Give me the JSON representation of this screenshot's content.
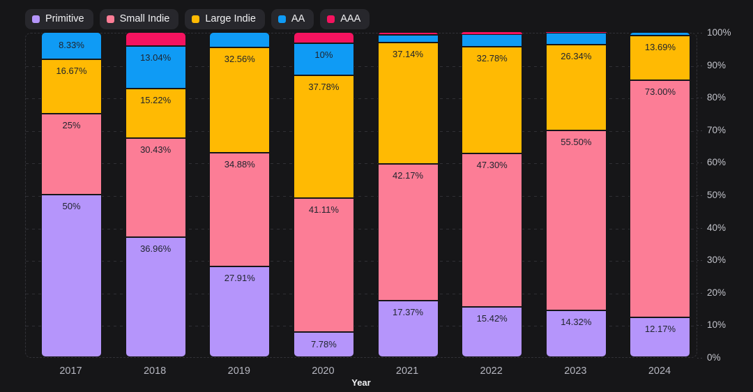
{
  "legend": {
    "items": [
      {
        "id": "primitive",
        "label": "Primitive",
        "color": "#b595fb"
      },
      {
        "id": "small-indie",
        "label": "Small Indie",
        "color": "#fc7d96"
      },
      {
        "id": "large-indie",
        "label": "Large Indie",
        "color": "#ffba03"
      },
      {
        "id": "aa",
        "label": "AA",
        "color": "#0f9bf5"
      },
      {
        "id": "aaa",
        "label": "AAA",
        "color": "#f5135f"
      }
    ]
  },
  "chart_data": {
    "type": "bar",
    "stacked": true,
    "normalized_percent": true,
    "title": "",
    "xlabel": "Year",
    "ylabel": "",
    "ylim": [
      0,
      100
    ],
    "grid": "dashed-horizontal",
    "legend_position": "top-left",
    "y_ticks": [
      "0%",
      "10%",
      "20%",
      "30%",
      "40%",
      "50%",
      "60%",
      "70%",
      "80%",
      "90%",
      "100%"
    ],
    "categories": [
      "2017",
      "2018",
      "2019",
      "2020",
      "2021",
      "2022",
      "2023",
      "2024"
    ],
    "series": [
      {
        "name": "Primitive",
        "color": "#b595fb",
        "values": [
          50,
          36.96,
          27.91,
          7.78,
          17.37,
          15.42,
          14.32,
          12.17
        ],
        "labels": [
          "50%",
          "36.96%",
          "27.91%",
          "7.78%",
          "17.37%",
          "15.42%",
          "14.32%",
          "12.17%"
        ]
      },
      {
        "name": "Small Indie",
        "color": "#fc7d96",
        "values": [
          25,
          30.43,
          34.88,
          41.11,
          42.17,
          47.3,
          55.5,
          73.0
        ],
        "labels": [
          "25%",
          "30.43%",
          "34.88%",
          "41.11%",
          "42.17%",
          "47.30%",
          "55.50%",
          "73.00%"
        ]
      },
      {
        "name": "Large Indie",
        "color": "#ffba03",
        "values": [
          16.67,
          15.22,
          32.56,
          37.78,
          37.14,
          32.78,
          26.34,
          13.69
        ],
        "labels": [
          "16.67%",
          "15.22%",
          "32.56%",
          "37.78%",
          "37.14%",
          "32.78%",
          "26.34%",
          "13.69%"
        ]
      },
      {
        "name": "AA",
        "color": "#0f9bf5",
        "values": [
          8.33,
          13.04,
          4.65,
          10,
          2.41,
          3.9,
          3.54,
          1.14
        ],
        "labels": [
          "8.33%",
          "13.04%",
          "",
          "10%",
          "",
          "",
          "",
          ""
        ]
      },
      {
        "name": "AAA",
        "color": "#f5135f",
        "values": [
          0,
          4.35,
          0,
          3.33,
          0.91,
          0.6,
          0.3,
          0
        ],
        "labels": [
          "",
          "",
          "",
          "",
          "",
          "",
          "",
          ""
        ]
      }
    ]
  },
  "colors": {
    "background": "#161618",
    "legend_pill_background": "#27272c",
    "grid_line": "#303035",
    "axis_tick_text": "#c3c4cb",
    "x_tick_text": "#b6b7c0",
    "bar_value_text": "#20252e",
    "axis_title_text": "#eff0f2"
  }
}
